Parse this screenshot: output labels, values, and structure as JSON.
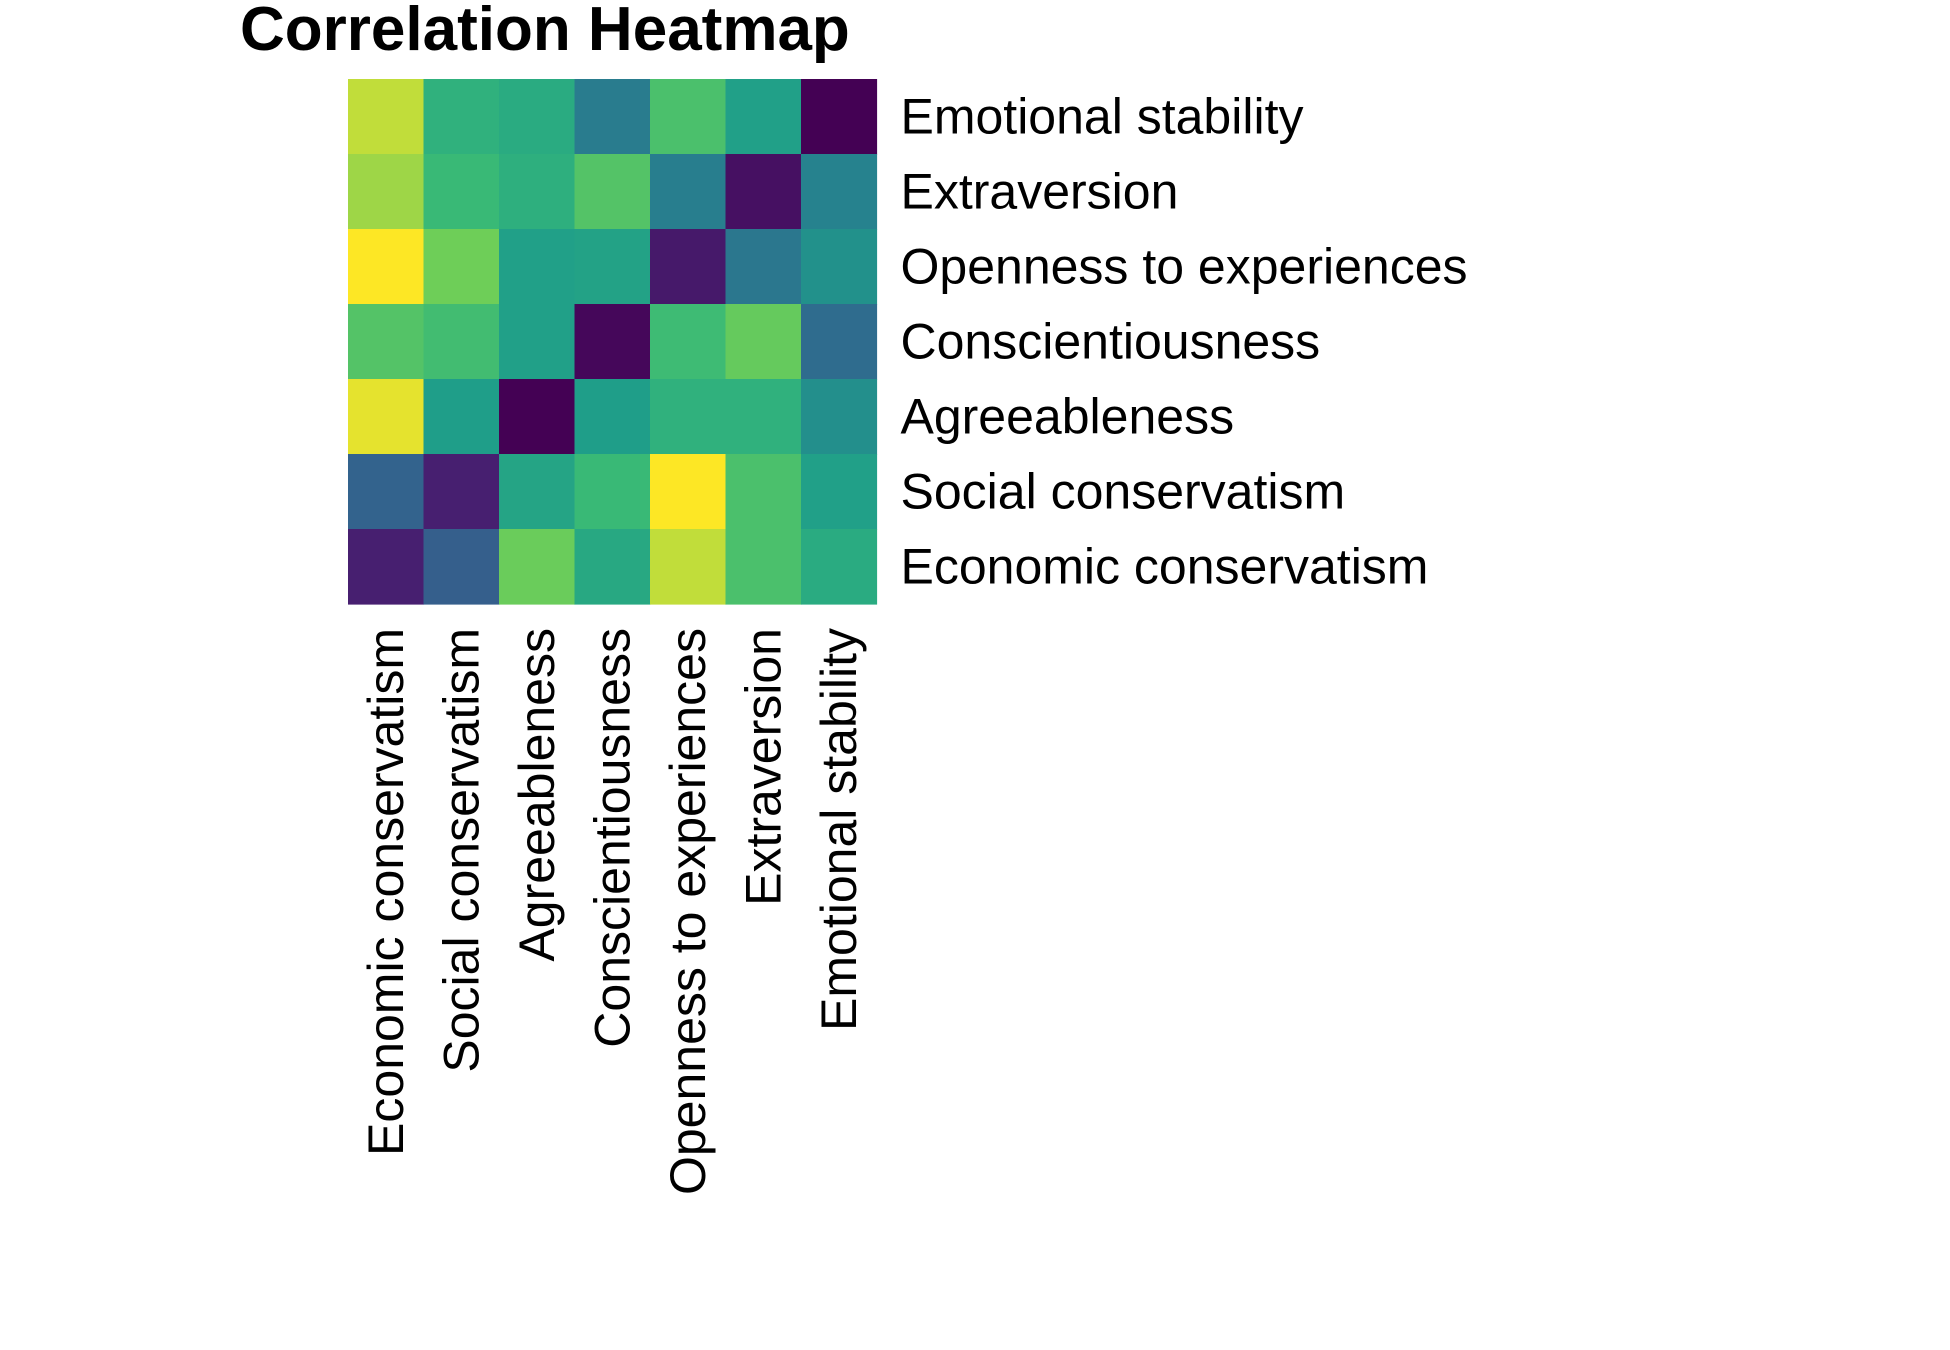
{
  "chart_data": {
    "type": "heatmap",
    "title": "Correlation Heatmap",
    "xlabel": "",
    "ylabel": "",
    "colormap": "viridis",
    "legend": "none",
    "grid": false,
    "x_categories": [
      "Economic conservatism",
      "Social conservatism",
      "Agreeableness",
      "Conscientiousness",
      "Openness to experiences",
      "Extraversion",
      "Emotional stability"
    ],
    "y_categories": [
      "Emotional stability",
      "Extraversion",
      "Openness to experiences",
      "Conscientiousness",
      "Agreeableness",
      "Social conservatism",
      "Economic conservatism"
    ],
    "values": [
      [
        0.95,
        0.72,
        0.69,
        0.47,
        0.8,
        0.64,
        0.0
      ],
      [
        0.92,
        0.76,
        0.71,
        0.82,
        0.48,
        0.05,
        0.5
      ],
      [
        1.0,
        0.88,
        0.64,
        0.65,
        0.08,
        0.45,
        0.57
      ],
      [
        0.82,
        0.78,
        0.64,
        0.02,
        0.77,
        0.86,
        0.4
      ],
      [
        0.98,
        0.63,
        0.0,
        0.63,
        0.72,
        0.72,
        0.56
      ],
      [
        0.36,
        0.1,
        0.66,
        0.76,
        1.0,
        0.8,
        0.64
      ],
      [
        0.1,
        0.34,
        0.87,
        0.68,
        0.95,
        0.8,
        0.69
      ]
    ],
    "value_range": [
      0,
      1
    ]
  }
}
